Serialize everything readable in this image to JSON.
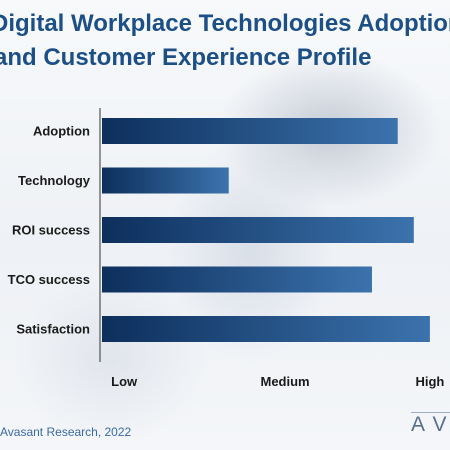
{
  "title_lines": [
    "Digital Workplace Technologies Adoption",
    "and Customer Experience Profile"
  ],
  "source": "Avasant Research, 2022",
  "logo_text": "AVASANT",
  "colors": {
    "title": "#1c4f86",
    "bar_dark": "#0d2f5c",
    "bar_light": "#3c73ad",
    "axis": "#333333"
  },
  "chart_data": {
    "type": "bar",
    "orientation": "horizontal",
    "categories": [
      "Adoption",
      "Technology",
      "ROI success",
      "TCO success",
      "Satisfaction"
    ],
    "values": [
      2.7,
      1.65,
      2.8,
      2.54,
      2.9
    ],
    "xlim": [
      0.85,
      3.0
    ],
    "xticks": [
      {
        "value": 1,
        "label": "Low"
      },
      {
        "value": 2,
        "label": "Medium"
      },
      {
        "value": 2.9,
        "label": "High"
      }
    ],
    "grid": false,
    "legend": false,
    "title": "",
    "xlabel": "",
    "ylabel": ""
  }
}
